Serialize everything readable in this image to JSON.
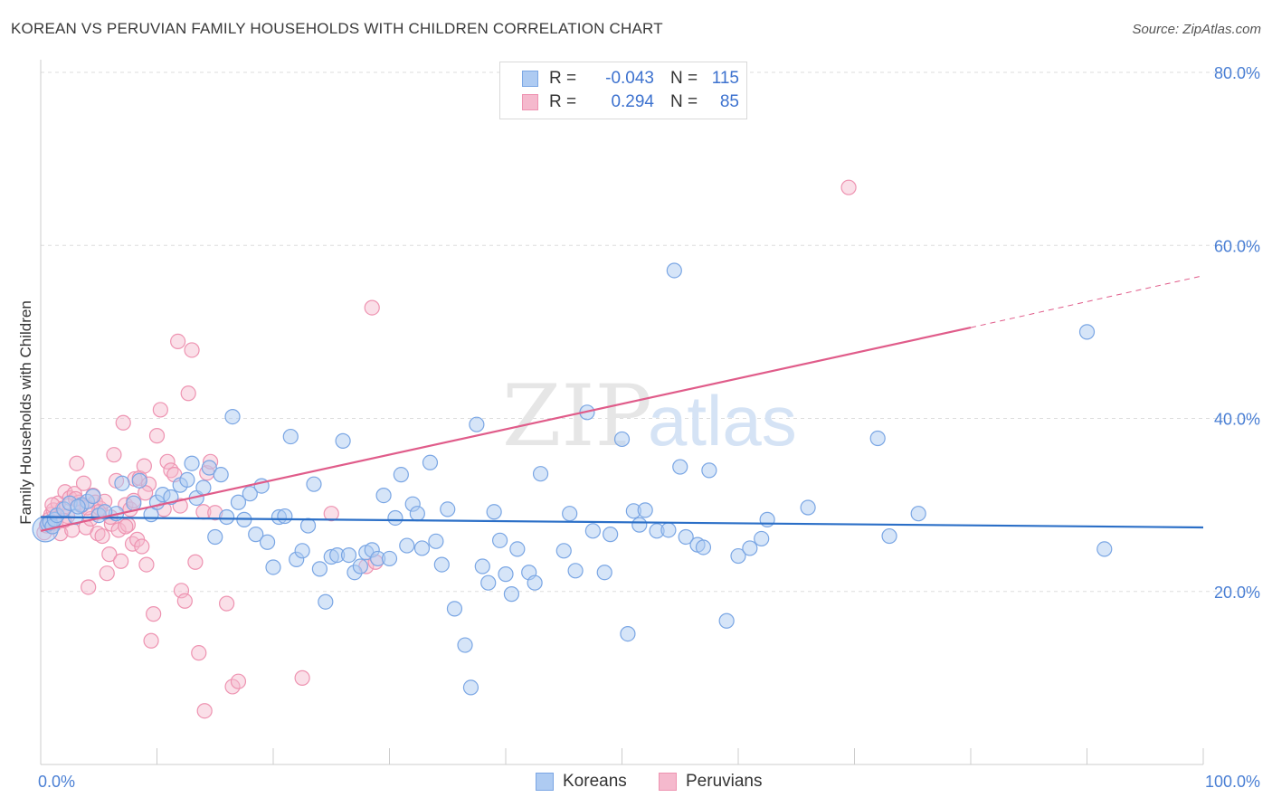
{
  "title": "KOREAN VS PERUVIAN FAMILY HOUSEHOLDS WITH CHILDREN CORRELATION CHART",
  "source": "Source: ZipAtlas.com",
  "watermark": {
    "zip": "ZIP",
    "atlas": "atlas"
  },
  "legend": {
    "koreans": {
      "r_label": "R =",
      "r_value": "-0.043",
      "n_label": "N =",
      "n_value": "115",
      "name": "Koreans"
    },
    "peruvians": {
      "r_label": "R =",
      "r_value": "0.294",
      "n_label": "N =",
      "n_value": "85",
      "name": "Peruvians"
    }
  },
  "colors": {
    "korean_fill": "#aecbf2",
    "korean_stroke": "#7aa6e4",
    "korean_line": "#2b6fc7",
    "peruvian_fill": "#f5b9cd",
    "peruvian_stroke": "#ee93b1",
    "peruvian_line": "#e05c8a",
    "tick_label": "#4a7fd4",
    "grid": "#dddddd"
  },
  "chart_data": {
    "type": "scatter",
    "title": "KOREAN VS PERUVIAN FAMILY HOUSEHOLDS WITH CHILDREN CORRELATION CHART",
    "xlabel": "",
    "ylabel": "Family Households with Children",
    "xlim": [
      0,
      100
    ],
    "ylim": [
      0,
      80
    ],
    "x_tick_labels": [
      "0.0%",
      "100.0%"
    ],
    "y_ticks": [
      20,
      40,
      60,
      80
    ],
    "y_tick_labels": [
      "20.0%",
      "40.0%",
      "60.0%",
      "80.0%"
    ],
    "grid": "horizontal dashed",
    "legend_position": "top-center",
    "series": [
      {
        "name": "Koreans",
        "trend": {
          "x": [
            0,
            100
          ],
          "y": [
            28.6,
            27.4
          ],
          "style": "solid"
        },
        "points": [
          [
            0.4,
            27.2
          ],
          [
            0.6,
            27.8
          ],
          [
            0.8,
            28.0
          ],
          [
            1.0,
            27.5
          ],
          [
            1.2,
            28.3
          ],
          [
            1.4,
            28.8
          ],
          [
            2.0,
            29.5
          ],
          [
            2.5,
            30.2
          ],
          [
            3.0,
            28.6
          ],
          [
            3.5,
            30.0
          ],
          [
            4.0,
            30.4
          ],
          [
            4.5,
            31.0
          ],
          [
            5.0,
            28.8
          ],
          [
            6.5,
            29.0
          ],
          [
            7.0,
            32.5
          ],
          [
            8.0,
            30.2
          ],
          [
            8.5,
            32.8
          ],
          [
            9.5,
            28.9
          ],
          [
            10.0,
            30.3
          ],
          [
            10.5,
            31.2
          ],
          [
            11.2,
            30.9
          ],
          [
            12.0,
            32.3
          ],
          [
            12.6,
            32.9
          ],
          [
            13.0,
            34.8
          ],
          [
            13.4,
            30.8
          ],
          [
            14.0,
            32.0
          ],
          [
            14.5,
            34.3
          ],
          [
            15.0,
            26.3
          ],
          [
            15.5,
            33.5
          ],
          [
            16.0,
            28.6
          ],
          [
            16.5,
            40.2
          ],
          [
            17.0,
            30.3
          ],
          [
            17.5,
            28.3
          ],
          [
            18.0,
            31.3
          ],
          [
            18.5,
            26.6
          ],
          [
            19.0,
            32.2
          ],
          [
            19.5,
            25.7
          ],
          [
            20.0,
            22.8
          ],
          [
            20.5,
            28.6
          ],
          [
            21.0,
            28.7
          ],
          [
            21.5,
            37.9
          ],
          [
            22.0,
            23.7
          ],
          [
            22.5,
            24.7
          ],
          [
            23.0,
            27.6
          ],
          [
            23.5,
            32.4
          ],
          [
            24.0,
            22.6
          ],
          [
            24.5,
            18.8
          ],
          [
            25.0,
            24.0
          ],
          [
            25.5,
            24.2
          ],
          [
            26.0,
            37.4
          ],
          [
            26.5,
            24.2
          ],
          [
            27.0,
            22.2
          ],
          [
            27.5,
            22.9
          ],
          [
            28.0,
            24.5
          ],
          [
            28.5,
            24.8
          ],
          [
            29.0,
            23.8
          ],
          [
            29.5,
            31.1
          ],
          [
            30.0,
            23.8
          ],
          [
            30.5,
            28.5
          ],
          [
            31.0,
            33.5
          ],
          [
            31.5,
            25.3
          ],
          [
            32.0,
            30.1
          ],
          [
            32.4,
            29.0
          ],
          [
            32.8,
            25.0
          ],
          [
            33.5,
            34.9
          ],
          [
            34.0,
            25.8
          ],
          [
            34.5,
            23.1
          ],
          [
            35.0,
            29.5
          ],
          [
            35.6,
            18.0
          ],
          [
            36.5,
            13.8
          ],
          [
            37.0,
            8.9
          ],
          [
            37.5,
            39.3
          ],
          [
            38.0,
            22.9
          ],
          [
            38.5,
            21.0
          ],
          [
            39.0,
            29.2
          ],
          [
            39.5,
            25.9
          ],
          [
            40.0,
            22.0
          ],
          [
            40.5,
            19.7
          ],
          [
            41.0,
            24.9
          ],
          [
            42.0,
            22.2
          ],
          [
            42.5,
            21.0
          ],
          [
            43.0,
            33.6
          ],
          [
            45.0,
            24.7
          ],
          [
            45.5,
            29.0
          ],
          [
            46.0,
            22.4
          ],
          [
            47.0,
            40.7
          ],
          [
            47.5,
            27.0
          ],
          [
            48.5,
            22.2
          ],
          [
            49.0,
            26.6
          ],
          [
            50.0,
            37.6
          ],
          [
            50.5,
            15.1
          ],
          [
            51.0,
            29.3
          ],
          [
            51.5,
            27.7
          ],
          [
            52.0,
            29.4
          ],
          [
            53.0,
            27.0
          ],
          [
            54.0,
            27.1
          ],
          [
            54.5,
            57.1
          ],
          [
            55.0,
            34.4
          ],
          [
            55.5,
            26.3
          ],
          [
            56.5,
            25.4
          ],
          [
            57.0,
            25.1
          ],
          [
            57.5,
            34.0
          ],
          [
            59.0,
            16.6
          ],
          [
            60.0,
            24.1
          ],
          [
            61.0,
            25.0
          ],
          [
            62.0,
            26.1
          ],
          [
            62.5,
            28.3
          ],
          [
            66.0,
            29.7
          ],
          [
            72.0,
            37.7
          ],
          [
            73.0,
            26.4
          ],
          [
            75.5,
            29.0
          ],
          [
            90.0,
            50.0
          ],
          [
            91.5,
            24.9
          ],
          [
            5.5,
            29.2
          ],
          [
            3.2,
            29.8
          ]
        ]
      },
      {
        "name": "Peruvians",
        "trend": {
          "x": [
            0,
            80
          ],
          "y": [
            27.0,
            50.5
          ],
          "style": "solid",
          "dashed_extension": {
            "x": [
              80,
              100
            ],
            "y": [
              50.5,
              56.5
            ]
          }
        },
        "points": [
          [
            0.3,
            26.8
          ],
          [
            0.5,
            27.6
          ],
          [
            0.7,
            28.3
          ],
          [
            0.9,
            28.9
          ],
          [
            1.1,
            29.4
          ],
          [
            1.3,
            27.9
          ],
          [
            1.5,
            30.2
          ],
          [
            1.7,
            26.7
          ],
          [
            1.9,
            29.6
          ],
          [
            2.1,
            31.5
          ],
          [
            2.3,
            28.7
          ],
          [
            2.5,
            30.8
          ],
          [
            2.7,
            27.1
          ],
          [
            2.9,
            31.3
          ],
          [
            3.1,
            34.8
          ],
          [
            3.3,
            30.3
          ],
          [
            3.5,
            29.9
          ],
          [
            3.7,
            32.5
          ],
          [
            3.9,
            27.4
          ],
          [
            4.1,
            20.5
          ],
          [
            4.3,
            28.4
          ],
          [
            4.5,
            31.1
          ],
          [
            4.7,
            30.3
          ],
          [
            4.9,
            26.7
          ],
          [
            5.1,
            29.6
          ],
          [
            5.3,
            26.4
          ],
          [
            5.5,
            30.4
          ],
          [
            5.7,
            22.1
          ],
          [
            5.9,
            24.3
          ],
          [
            6.1,
            27.8
          ],
          [
            6.3,
            35.8
          ],
          [
            6.5,
            32.8
          ],
          [
            6.7,
            27.1
          ],
          [
            6.9,
            23.5
          ],
          [
            7.1,
            39.5
          ],
          [
            7.3,
            30.0
          ],
          [
            7.5,
            27.7
          ],
          [
            7.7,
            29.5
          ],
          [
            7.9,
            25.5
          ],
          [
            8.1,
            33.0
          ],
          [
            8.3,
            26.0
          ],
          [
            8.5,
            33.1
          ],
          [
            8.7,
            25.2
          ],
          [
            8.9,
            34.5
          ],
          [
            9.1,
            23.1
          ],
          [
            9.3,
            32.4
          ],
          [
            9.5,
            14.3
          ],
          [
            9.7,
            17.4
          ],
          [
            10.0,
            38.0
          ],
          [
            10.3,
            41.0
          ],
          [
            10.6,
            29.5
          ],
          [
            10.9,
            35.0
          ],
          [
            11.2,
            34.0
          ],
          [
            11.5,
            33.5
          ],
          [
            11.8,
            48.9
          ],
          [
            12.1,
            20.1
          ],
          [
            12.4,
            18.9
          ],
          [
            12.7,
            42.9
          ],
          [
            13.0,
            47.9
          ],
          [
            13.3,
            23.4
          ],
          [
            13.6,
            12.9
          ],
          [
            14.0,
            29.2
          ],
          [
            14.3,
            33.7
          ],
          [
            14.6,
            35.0
          ],
          [
            14.1,
            6.2
          ],
          [
            15.0,
            29.1
          ],
          [
            16.0,
            18.6
          ],
          [
            16.5,
            9.0
          ],
          [
            17.0,
            9.6
          ],
          [
            22.5,
            10.0
          ],
          [
            25.0,
            29.0
          ],
          [
            28.0,
            22.9
          ],
          [
            28.5,
            52.8
          ],
          [
            28.8,
            23.4
          ],
          [
            69.5,
            66.7
          ],
          [
            12.0,
            29.9
          ],
          [
            9.0,
            31.4
          ],
          [
            7.3,
            27.5
          ],
          [
            5.0,
            29.2
          ],
          [
            4.0,
            29.7
          ],
          [
            3.0,
            30.7
          ],
          [
            2.0,
            28.2
          ],
          [
            1.0,
            30.0
          ],
          [
            6.0,
            28.6
          ],
          [
            8.0,
            30.5
          ]
        ]
      }
    ]
  }
}
